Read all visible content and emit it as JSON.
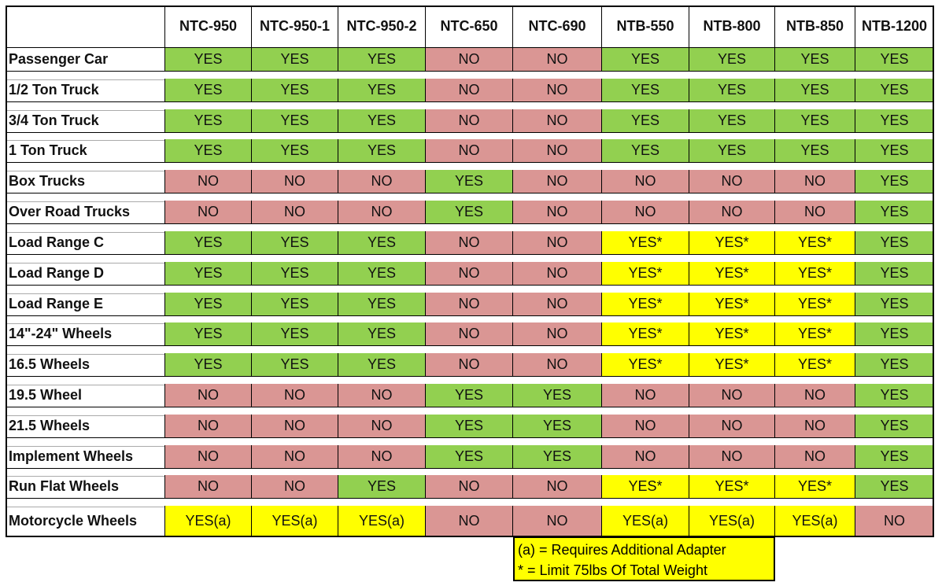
{
  "table": {
    "columns": [
      "NTC-950",
      "NTC-950-1",
      "NTC-950-2",
      "NTC-650",
      "NTC-690",
      "NTB-550",
      "NTB-800",
      "NTB-850",
      "NTB-1200"
    ],
    "rows": [
      {
        "label": "Passenger Car",
        "cells": [
          "YES",
          "YES",
          "YES",
          "NO",
          "NO",
          "YES",
          "YES",
          "YES",
          "YES"
        ],
        "colors": [
          "green",
          "green",
          "green",
          "red",
          "red",
          "green",
          "green",
          "green",
          "green"
        ]
      },
      {
        "label": "1/2 Ton Truck",
        "cells": [
          "YES",
          "YES",
          "YES",
          "NO",
          "NO",
          "YES",
          "YES",
          "YES",
          "YES"
        ],
        "colors": [
          "green",
          "green",
          "green",
          "red",
          "red",
          "green",
          "green",
          "green",
          "green"
        ]
      },
      {
        "label": "3/4 Ton Truck",
        "cells": [
          "YES",
          "YES",
          "YES",
          "NO",
          "NO",
          "YES",
          "YES",
          "YES",
          "YES"
        ],
        "colors": [
          "green",
          "green",
          "green",
          "red",
          "red",
          "green",
          "green",
          "green",
          "green"
        ]
      },
      {
        "label": "1 Ton Truck",
        "cells": [
          "YES",
          "YES",
          "YES",
          "NO",
          "NO",
          "YES",
          "YES",
          "YES",
          "YES"
        ],
        "colors": [
          "green",
          "green",
          "green",
          "red",
          "red",
          "green",
          "green",
          "green",
          "green"
        ]
      },
      {
        "label": "Box Trucks",
        "cells": [
          "NO",
          "NO",
          "NO",
          "YES",
          "NO",
          "NO",
          "NO",
          "NO",
          "YES"
        ],
        "colors": [
          "red",
          "red",
          "red",
          "green",
          "red",
          "red",
          "red",
          "red",
          "green"
        ]
      },
      {
        "label": "Over Road Trucks",
        "cells": [
          "NO",
          "NO",
          "NO",
          "YES",
          "NO",
          "NO",
          "NO",
          "NO",
          "YES"
        ],
        "colors": [
          "red",
          "red",
          "red",
          "green",
          "red",
          "red",
          "red",
          "red",
          "green"
        ]
      },
      {
        "label": "Load Range C",
        "cells": [
          "YES",
          "YES",
          "YES",
          "NO",
          "NO",
          "YES*",
          "YES*",
          "YES*",
          "YES"
        ],
        "colors": [
          "green",
          "green",
          "green",
          "red",
          "red",
          "yellow",
          "yellow",
          "yellow",
          "green"
        ]
      },
      {
        "label": "Load Range D",
        "cells": [
          "YES",
          "YES",
          "YES",
          "NO",
          "NO",
          "YES*",
          "YES*",
          "YES*",
          "YES"
        ],
        "colors": [
          "green",
          "green",
          "green",
          "red",
          "red",
          "yellow",
          "yellow",
          "yellow",
          "green"
        ]
      },
      {
        "label": "Load Range E",
        "cells": [
          "YES",
          "YES",
          "YES",
          "NO",
          "NO",
          "YES*",
          "YES*",
          "YES*",
          "YES"
        ],
        "colors": [
          "green",
          "green",
          "green",
          "red",
          "red",
          "yellow",
          "yellow",
          "yellow",
          "green"
        ]
      },
      {
        "label": "14\"-24\" Wheels",
        "cells": [
          "YES",
          "YES",
          "YES",
          "NO",
          "NO",
          "YES*",
          "YES*",
          "YES*",
          "YES"
        ],
        "colors": [
          "green",
          "green",
          "green",
          "red",
          "red",
          "yellow",
          "yellow",
          "yellow",
          "green"
        ]
      },
      {
        "label": "16.5 Wheels",
        "cells": [
          "YES",
          "YES",
          "YES",
          "NO",
          "NO",
          "YES*",
          "YES*",
          "YES*",
          "YES"
        ],
        "colors": [
          "green",
          "green",
          "green",
          "red",
          "red",
          "yellow",
          "yellow",
          "yellow",
          "green"
        ]
      },
      {
        "label": "19.5 Wheel",
        "cells": [
          "NO",
          "NO",
          "NO",
          "YES",
          "YES",
          "NO",
          "NO",
          "NO",
          "YES"
        ],
        "colors": [
          "red",
          "red",
          "red",
          "green",
          "green",
          "red",
          "red",
          "red",
          "green"
        ]
      },
      {
        "label": "21.5 Wheels",
        "cells": [
          "NO",
          "NO",
          "NO",
          "YES",
          "YES",
          "NO",
          "NO",
          "NO",
          "YES"
        ],
        "colors": [
          "red",
          "red",
          "red",
          "green",
          "green",
          "red",
          "red",
          "red",
          "green"
        ]
      },
      {
        "label": "Implement Wheels",
        "cells": [
          "NO",
          "NO",
          "NO",
          "YES",
          "YES",
          "NO",
          "NO",
          "NO",
          "YES"
        ],
        "colors": [
          "red",
          "red",
          "red",
          "green",
          "green",
          "red",
          "red",
          "red",
          "green"
        ]
      },
      {
        "label": "Run Flat Wheels",
        "cells": [
          "NO",
          "NO",
          "YES",
          "NO",
          "NO",
          "YES*",
          "YES*",
          "YES*",
          "YES"
        ],
        "colors": [
          "red",
          "red",
          "green",
          "red",
          "red",
          "yellow",
          "yellow",
          "yellow",
          "green"
        ]
      },
      {
        "label": "Motorcycle Wheels",
        "cells": [
          "YES(a)",
          "YES(a)",
          "YES(a)",
          "NO",
          "NO",
          "YES(a)",
          "YES(a)",
          "YES(a)",
          "NO"
        ],
        "colors": [
          "yellow",
          "yellow",
          "yellow",
          "red",
          "red",
          "yellow",
          "yellow",
          "yellow",
          "red"
        ]
      }
    ]
  },
  "notes": [
    "(a) = Requires Additional Adapter",
    "* = Limit 75lbs Of Total Weight"
  ]
}
